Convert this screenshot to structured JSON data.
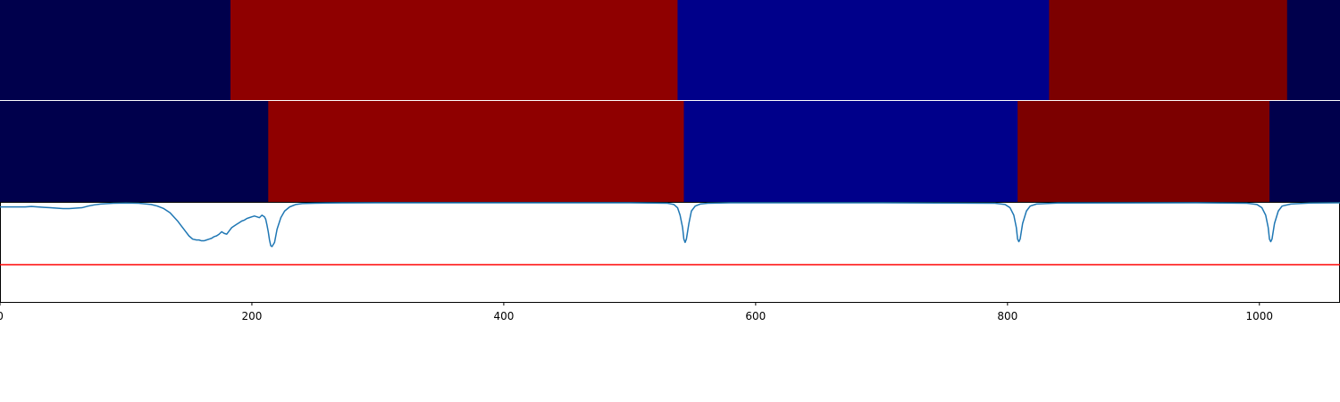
{
  "chart_data": [
    {
      "type": "heatmap",
      "segments": [
        {
          "start": 0,
          "end": 183,
          "color": "#00004c"
        },
        {
          "start": 183,
          "end": 538,
          "color": "#8f0000"
        },
        {
          "start": 538,
          "end": 833,
          "color": "#00008a"
        },
        {
          "start": 833,
          "end": 1022,
          "color": "#7c0000"
        },
        {
          "start": 1022,
          "end": 1064,
          "color": "#00004c"
        }
      ]
    },
    {
      "type": "heatmap",
      "segments": [
        {
          "start": 0,
          "end": 213,
          "color": "#00004c"
        },
        {
          "start": 213,
          "end": 543,
          "color": "#8f0000"
        },
        {
          "start": 543,
          "end": 808,
          "color": "#00008a"
        },
        {
          "start": 808,
          "end": 1008,
          "color": "#7c0000"
        },
        {
          "start": 1008,
          "end": 1064,
          "color": "#00004c"
        }
      ]
    },
    {
      "type": "line",
      "xlim": [
        0,
        1064
      ],
      "ylim": [
        -0.2,
        1.0
      ],
      "x": [
        0,
        10,
        20,
        25,
        30,
        35,
        40,
        45,
        50,
        55,
        60,
        65,
        70,
        75,
        80,
        90,
        100,
        110,
        120,
        125,
        130,
        135,
        138,
        141,
        144,
        147,
        150,
        153,
        156,
        158,
        160,
        162,
        164,
        166,
        168,
        170,
        172,
        174,
        176,
        178,
        180,
        182,
        184,
        186,
        188,
        190,
        192,
        194,
        196,
        198,
        200,
        202,
        204,
        206,
        208,
        210,
        211,
        212,
        213,
        214,
        215,
        216,
        218,
        220,
        223,
        226,
        230,
        235,
        240,
        250,
        260,
        300,
        400,
        500,
        530,
        535,
        538,
        540,
        542,
        543,
        544,
        545,
        547,
        549,
        552,
        556,
        562,
        580,
        700,
        790,
        798,
        802,
        805,
        807,
        808,
        809,
        810,
        812,
        815,
        818,
        823,
        840,
        950,
        990,
        998,
        1002,
        1005,
        1007,
        1008,
        1009,
        1010,
        1012,
        1015,
        1018,
        1025,
        1040,
        1064
      ],
      "y": [
        0.95,
        0.95,
        0.95,
        0.955,
        0.95,
        0.945,
        0.94,
        0.935,
        0.93,
        0.93,
        0.935,
        0.94,
        0.96,
        0.975,
        0.985,
        0.995,
        0.998,
        0.995,
        0.98,
        0.96,
        0.93,
        0.88,
        0.83,
        0.78,
        0.72,
        0.66,
        0.6,
        0.56,
        0.55,
        0.55,
        0.54,
        0.54,
        0.55,
        0.56,
        0.57,
        0.59,
        0.6,
        0.62,
        0.65,
        0.63,
        0.62,
        0.66,
        0.7,
        0.72,
        0.74,
        0.76,
        0.78,
        0.79,
        0.81,
        0.82,
        0.83,
        0.84,
        0.83,
        0.82,
        0.85,
        0.83,
        0.8,
        0.73,
        0.65,
        0.55,
        0.48,
        0.47,
        0.52,
        0.68,
        0.82,
        0.9,
        0.95,
        0.98,
        0.99,
        0.995,
        0.998,
        1.0,
        1.0,
        1.0,
        0.995,
        0.98,
        0.94,
        0.85,
        0.7,
        0.56,
        0.52,
        0.56,
        0.75,
        0.9,
        0.96,
        0.985,
        0.995,
        1.0,
        1.0,
        0.995,
        0.98,
        0.94,
        0.85,
        0.7,
        0.56,
        0.53,
        0.56,
        0.75,
        0.9,
        0.96,
        0.985,
        0.998,
        1.0,
        0.995,
        0.98,
        0.94,
        0.85,
        0.7,
        0.56,
        0.53,
        0.56,
        0.75,
        0.9,
        0.96,
        0.985,
        0.998,
        1.0
      ],
      "line_color": "#1f77b4",
      "threshold": 0.25,
      "threshold_color": "#ff0000",
      "x_ticks": [
        "0",
        "200",
        "400",
        "600",
        "800",
        "1000"
      ]
    }
  ]
}
